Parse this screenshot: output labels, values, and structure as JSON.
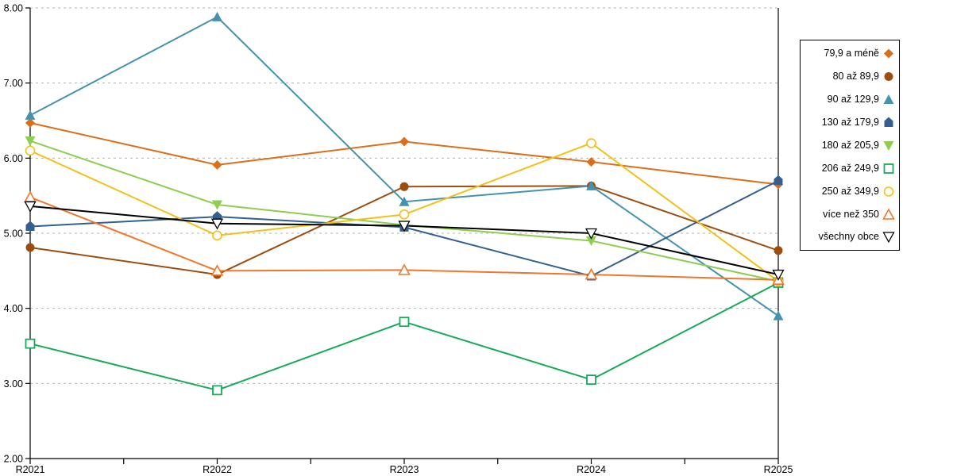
{
  "chart_data": {
    "type": "line",
    "title": "",
    "xlabel": "",
    "ylabel": "",
    "x": [
      "R2021",
      "R2022",
      "R2023",
      "R2024",
      "R2025"
    ],
    "ylim": [
      2.0,
      8.0
    ],
    "ytick_step": 1.0,
    "ytick_labels": [
      "8.00",
      "7.00",
      "6.00",
      "5.00",
      "4.00",
      "3.00",
      "2.00"
    ],
    "grid": "horizontal dashed light-gray",
    "legend_position": "right",
    "axis_color": "#000000",
    "grid_color": "#b3b3b3",
    "series": [
      {
        "name": "79,9 a méně",
        "marker": "diamond-filled",
        "color": "#dc6e1a",
        "values": [
          6.47,
          5.91,
          6.22,
          5.95,
          5.65
        ]
      },
      {
        "name": "80 až 89,9",
        "marker": "circle-filled",
        "color": "#9c4e10",
        "values": [
          4.81,
          4.45,
          5.62,
          5.63,
          4.77
        ]
      },
      {
        "name": "90 až 129,9",
        "marker": "triangle-up-filled",
        "color": "#4592ae",
        "values": [
          6.57,
          7.88,
          5.42,
          5.63,
          3.9
        ]
      },
      {
        "name": "130 až 179,9",
        "marker": "pentagon-filled",
        "color": "#33608f",
        "values": [
          5.09,
          5.22,
          5.08,
          4.43,
          5.7
        ]
      },
      {
        "name": "180 až 205,9",
        "marker": "triangle-down-filled",
        "color": "#8dce50",
        "values": [
          6.23,
          5.38,
          5.11,
          4.9,
          4.36
        ]
      },
      {
        "name": "206 až 249,9",
        "marker": "square-open",
        "color": "#17aa5c",
        "values": [
          3.53,
          2.91,
          3.82,
          3.05,
          4.34
        ]
      },
      {
        "name": "250 až 349,9",
        "marker": "circle-open",
        "color": "#f2c118",
        "values": [
          6.1,
          4.97,
          5.25,
          6.2,
          4.36
        ]
      },
      {
        "name": "více než 350",
        "marker": "triangle-up-open",
        "color": "#f0762b",
        "values": [
          5.48,
          4.5,
          4.51,
          4.45,
          4.38
        ]
      },
      {
        "name": "všechny obce",
        "marker": "triangle-down-open",
        "color": "#000000",
        "values": [
          5.36,
          5.13,
          5.1,
          5.0,
          4.45
        ]
      }
    ]
  }
}
